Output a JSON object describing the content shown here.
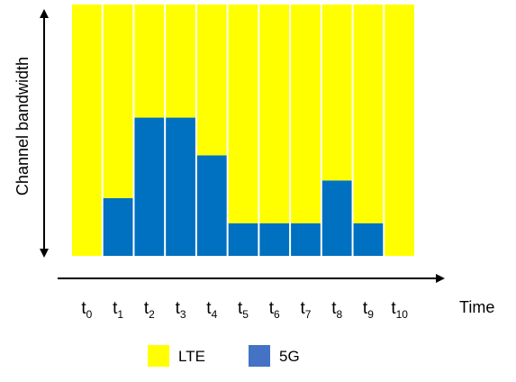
{
  "chart_data": {
    "type": "bar",
    "stacked": true,
    "categories": [
      {
        "base": "t",
        "sub": "0"
      },
      {
        "base": "t",
        "sub": "1"
      },
      {
        "base": "t",
        "sub": "2"
      },
      {
        "base": "t",
        "sub": "3"
      },
      {
        "base": "t",
        "sub": "4"
      },
      {
        "base": "t",
        "sub": "5"
      },
      {
        "base": "t",
        "sub": "6"
      },
      {
        "base": "t",
        "sub": "7"
      },
      {
        "base": "t",
        "sub": "8"
      },
      {
        "base": "t",
        "sub": "9"
      },
      {
        "base": "t",
        "sub": "10"
      }
    ],
    "series": [
      {
        "name": "5G",
        "color": "#0070c0",
        "values": [
          0,
          23,
          55,
          55,
          40,
          13,
          13,
          13,
          30,
          13,
          0
        ]
      },
      {
        "name": "LTE",
        "color": "#ffff00",
        "values": [
          100,
          77,
          45,
          45,
          60,
          87,
          87,
          87,
          70,
          87,
          100
        ]
      }
    ],
    "xlabel": "Time",
    "ylabel": "Channel bandwidth",
    "ylim": [
      0,
      100
    ],
    "grid": false,
    "legend": {
      "position": "bottom",
      "entries": [
        {
          "label": "LTE",
          "color": "#ffff00"
        },
        {
          "label": "5G",
          "color": "#4472c4"
        }
      ]
    }
  }
}
